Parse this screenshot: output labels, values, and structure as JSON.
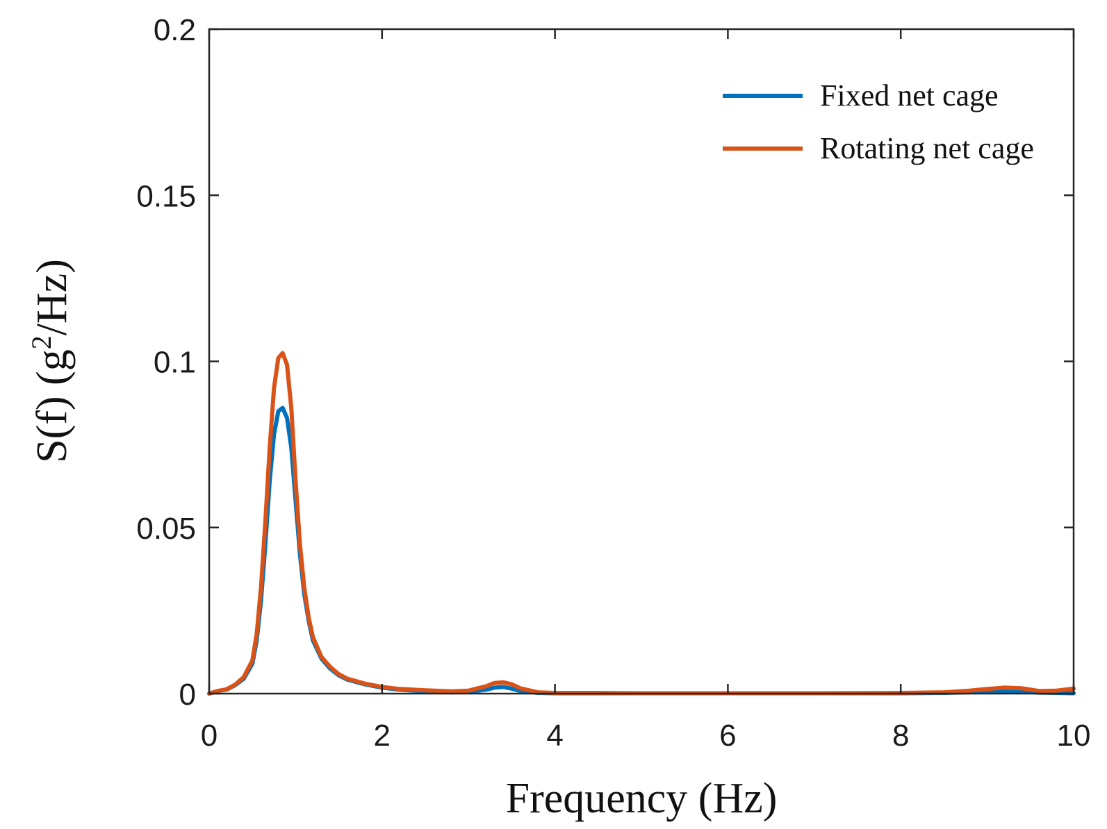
{
  "chart_data": {
    "type": "line",
    "title": "",
    "xlabel": "Frequency (Hz)",
    "ylabel": {
      "pre": "S(f) (g",
      "sup": "2",
      "post": "/Hz)"
    },
    "xlim": [
      0,
      10
    ],
    "ylim": [
      0,
      0.2
    ],
    "xticks": [
      0,
      2,
      4,
      6,
      8,
      10
    ],
    "xtick_labels": [
      "0",
      "2",
      "4",
      "6",
      "8",
      "10"
    ],
    "yticks": [
      0,
      0.05,
      0.1,
      0.15,
      0.2
    ],
    "ytick_labels": [
      "0",
      "0.05",
      "0.1",
      "0.15",
      "0.2"
    ],
    "grid": false,
    "legend_position": "top-right",
    "series": [
      {
        "name": "Fixed net cage",
        "color": "#0072BD",
        "x": [
          0,
          0.1,
          0.2,
          0.3,
          0.4,
          0.5,
          0.55,
          0.6,
          0.65,
          0.7,
          0.75,
          0.8,
          0.85,
          0.9,
          0.95,
          1.0,
          1.05,
          1.1,
          1.15,
          1.2,
          1.3,
          1.4,
          1.5,
          1.6,
          1.8,
          2.0,
          2.2,
          2.5,
          2.8,
          3.0,
          3.2,
          3.3,
          3.4,
          3.5,
          3.6,
          3.8,
          4.0,
          4.5,
          5.0,
          6.0,
          7.0,
          8.0,
          8.5,
          8.8,
          9.0,
          9.2,
          9.4,
          9.6,
          9.8,
          10.0
        ],
        "values": [
          0,
          0.0008,
          0.0012,
          0.0025,
          0.0045,
          0.009,
          0.016,
          0.028,
          0.045,
          0.064,
          0.078,
          0.085,
          0.086,
          0.083,
          0.074,
          0.058,
          0.042,
          0.03,
          0.022,
          0.016,
          0.0105,
          0.0075,
          0.0055,
          0.0042,
          0.0028,
          0.0018,
          0.0012,
          0.0007,
          0.0004,
          0.0005,
          0.0012,
          0.0018,
          0.002,
          0.0015,
          0.0008,
          0.0002,
          0.0001,
          0.0001,
          0.0001,
          0.0001,
          0.0001,
          0.0001,
          0.0002,
          0.0004,
          0.0006,
          0.0008,
          0.0006,
          0.0003,
          0.0002,
          0.0001
        ]
      },
      {
        "name": "Rotating net cage",
        "color": "#D95319",
        "x": [
          0,
          0.1,
          0.2,
          0.3,
          0.4,
          0.5,
          0.55,
          0.6,
          0.65,
          0.7,
          0.75,
          0.8,
          0.85,
          0.9,
          0.95,
          1.0,
          1.05,
          1.1,
          1.15,
          1.2,
          1.3,
          1.4,
          1.5,
          1.6,
          1.8,
          2.0,
          2.2,
          2.5,
          2.8,
          3.0,
          3.2,
          3.3,
          3.4,
          3.5,
          3.6,
          3.8,
          4.0,
          4.5,
          5.0,
          6.0,
          7.0,
          8.0,
          8.5,
          8.8,
          9.0,
          9.2,
          9.4,
          9.6,
          9.8,
          10.0
        ],
        "values": [
          0,
          0.0008,
          0.0013,
          0.0027,
          0.005,
          0.01,
          0.018,
          0.032,
          0.052,
          0.074,
          0.092,
          0.101,
          0.1025,
          0.099,
          0.086,
          0.064,
          0.045,
          0.032,
          0.023,
          0.017,
          0.011,
          0.008,
          0.0058,
          0.0045,
          0.003,
          0.002,
          0.0014,
          0.001,
          0.0007,
          0.0009,
          0.0022,
          0.0032,
          0.0034,
          0.0028,
          0.0016,
          0.0004,
          0.0002,
          0.0002,
          0.0001,
          0.0001,
          0.0001,
          0.0002,
          0.0004,
          0.0009,
          0.0014,
          0.0018,
          0.0016,
          0.0008,
          0.0009,
          0.0015
        ]
      }
    ]
  }
}
